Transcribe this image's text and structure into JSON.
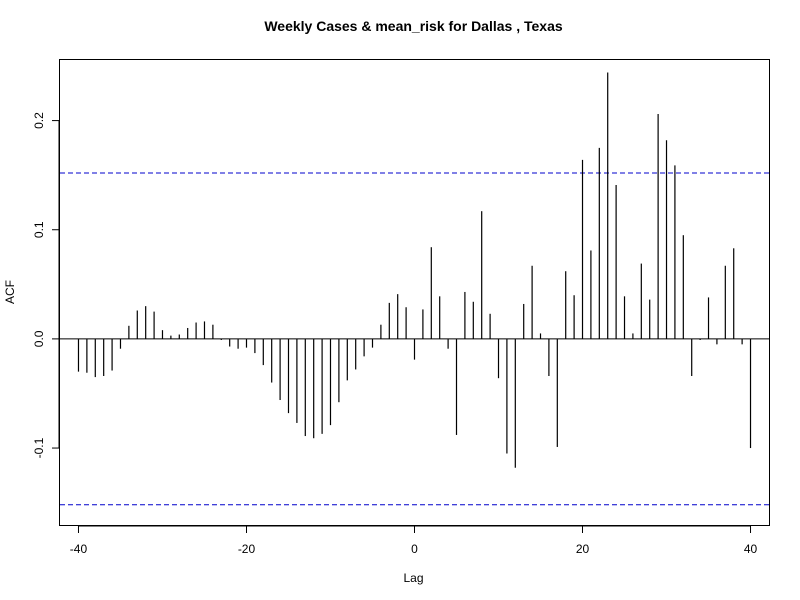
{
  "chart_data": {
    "type": "bar",
    "title": "Weekly Cases & mean_risk for Dallas , Texas",
    "xlabel": "Lag",
    "ylabel": "ACF",
    "xlim": [
      -42.2,
      42.2
    ],
    "ylim": [
      -0.1705,
      0.2555
    ],
    "x_ticks": [
      -40,
      -20,
      0,
      20,
      40
    ],
    "y_ticks": [
      -0.1,
      0.0,
      0.1,
      0.2
    ],
    "x_tick_labels": [
      "-40",
      "-20",
      "0",
      "20",
      "40"
    ],
    "y_tick_labels": [
      "-0.1",
      "0.0",
      "0.1",
      "0.2"
    ],
    "confidence_bound": 0.152,
    "colors": {
      "ci_line": "#0000cc",
      "bar": "#000000",
      "axis": "#000000"
    },
    "lags": [
      -40,
      -39,
      -38,
      -37,
      -36,
      -35,
      -34,
      -33,
      -32,
      -31,
      -30,
      -29,
      -28,
      -27,
      -26,
      -25,
      -24,
      -23,
      -22,
      -21,
      -20,
      -19,
      -18,
      -17,
      -16,
      -15,
      -14,
      -13,
      -12,
      -11,
      -10,
      -9,
      -8,
      -7,
      -6,
      -5,
      -4,
      -3,
      -2,
      -1,
      0,
      1,
      2,
      3,
      4,
      5,
      6,
      7,
      8,
      9,
      10,
      11,
      12,
      13,
      14,
      15,
      16,
      17,
      18,
      19,
      20,
      21,
      22,
      23,
      24,
      25,
      26,
      27,
      28,
      29,
      30,
      31,
      32,
      33,
      34,
      35,
      36,
      37,
      38,
      39,
      40
    ],
    "values": [
      -0.03,
      -0.031,
      -0.035,
      -0.034,
      -0.029,
      -0.009,
      0.012,
      0.026,
      0.03,
      0.025,
      0.008,
      0.003,
      0.004,
      0.01,
      0.015,
      0.016,
      0.013,
      -0.001,
      -0.007,
      -0.009,
      -0.008,
      -0.013,
      -0.024,
      -0.04,
      -0.056,
      -0.068,
      -0.077,
      -0.089,
      -0.091,
      -0.087,
      -0.079,
      -0.058,
      -0.038,
      -0.028,
      -0.016,
      -0.008,
      0.013,
      0.033,
      0.041,
      0.029,
      -0.019,
      0.027,
      0.084,
      0.039,
      -0.009,
      -0.088,
      0.043,
      0.034,
      0.117,
      0.023,
      -0.036,
      -0.105,
      -0.118,
      0.032,
      0.067,
      0.005,
      -0.034,
      -0.099,
      0.062,
      0.04,
      0.164,
      0.081,
      0.175,
      0.244,
      0.141,
      0.039,
      0.005,
      0.069,
      0.036,
      0.206,
      0.182,
      0.159,
      0.095,
      -0.034,
      -0.001,
      0.038,
      -0.005,
      0.067,
      0.083,
      -0.005,
      -0.1
    ]
  }
}
